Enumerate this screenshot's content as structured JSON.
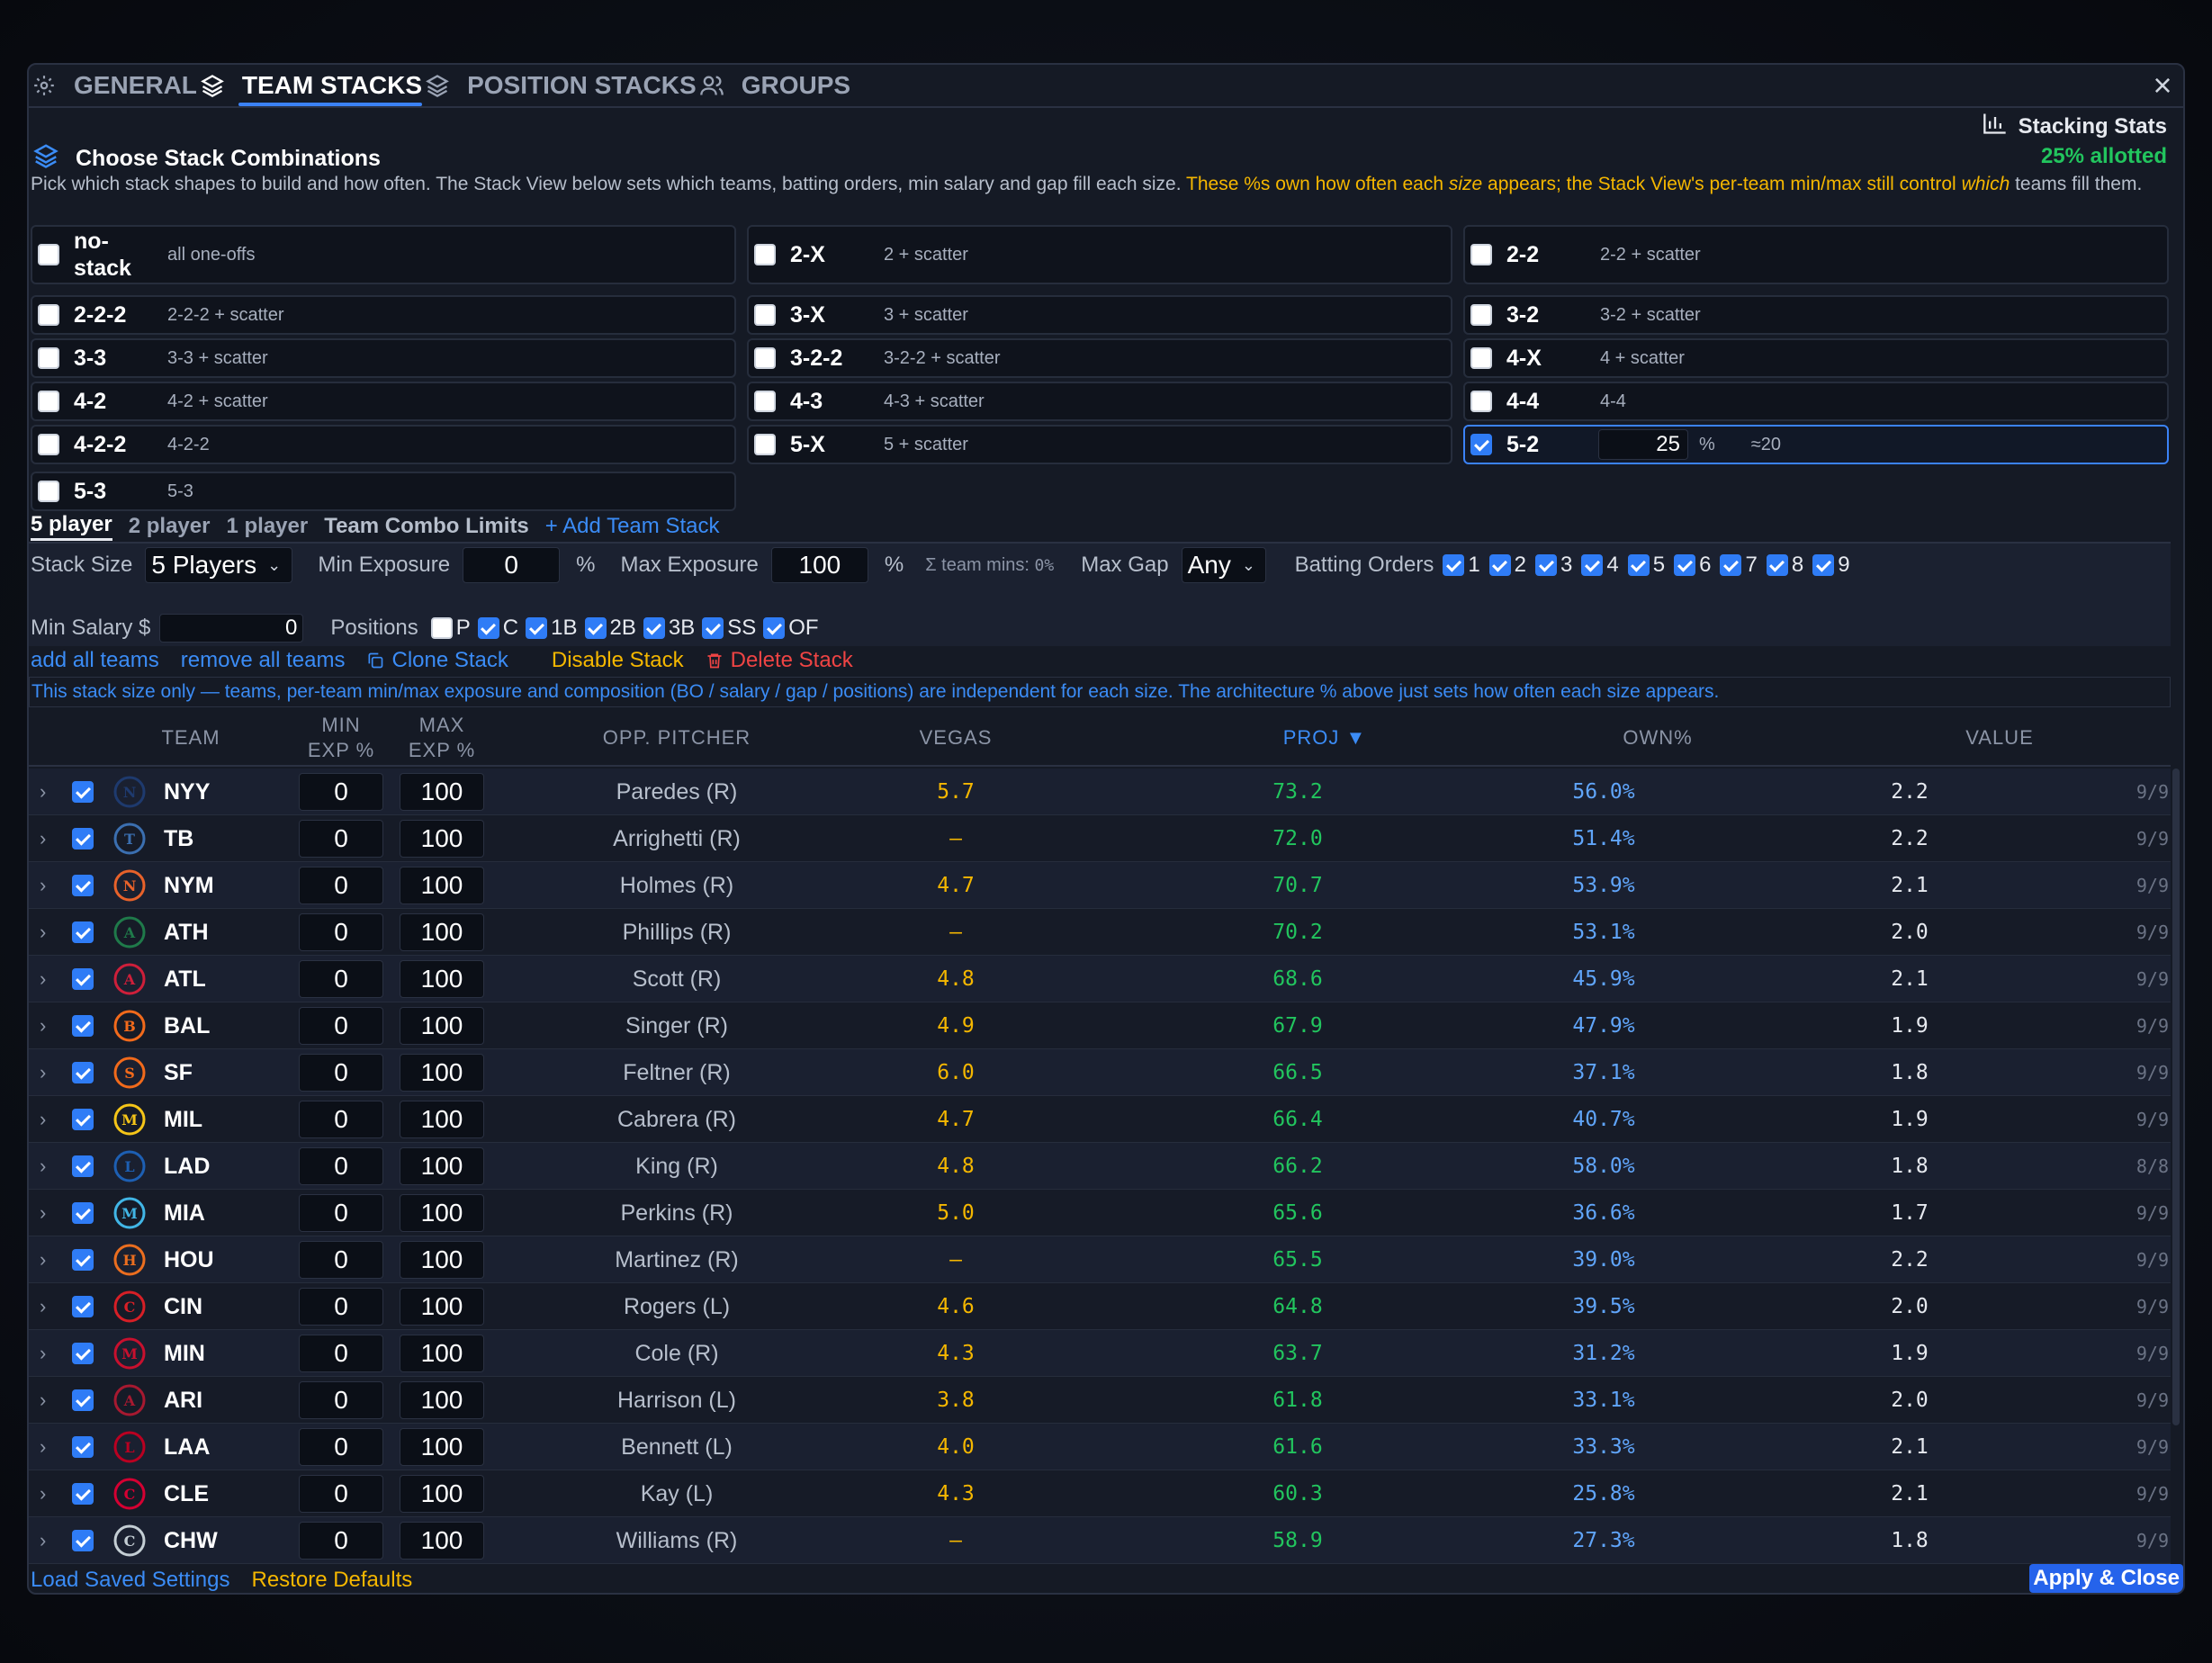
{
  "tabs": [
    {
      "label": "GENERAL",
      "icon": "gear-icon"
    },
    {
      "label": "TEAM STACKS",
      "icon": "layers-icon"
    },
    {
      "label": "POSITION STACKS",
      "icon": "layers-icon"
    },
    {
      "label": "GROUPS",
      "icon": "users-icon"
    }
  ],
  "stacking_stats_label": "Stacking Stats",
  "allotted": "25% allotted",
  "section_title": "Choose Stack Combinations",
  "description": {
    "part1": "Pick which stack shapes to build and how often. The Stack View below sets which teams, batting orders, min salary and gap fill each size. ",
    "warn1": "These %s own how often each ",
    "warn_em": "size",
    "warn2": " appears; the Stack View's per-team min/max still control ",
    "warn_em2": "which",
    "warn3": " teams fill them."
  },
  "combos": [
    {
      "label": "no-\nstack",
      "sub": "all one-offs",
      "checked": false
    },
    {
      "label": "2-X",
      "sub": "2 + scatter",
      "checked": false
    },
    {
      "label": "2-2",
      "sub": "2-2 + scatter",
      "checked": false
    },
    {
      "label": "2-2-2",
      "sub": "2-2-2 + scatter",
      "checked": false
    },
    {
      "label": "3-X",
      "sub": "3 + scatter",
      "checked": false
    },
    {
      "label": "3-2",
      "sub": "3-2 + scatter",
      "checked": false
    },
    {
      "label": "3-3",
      "sub": "3-3 + scatter",
      "checked": false
    },
    {
      "label": "3-2-2",
      "sub": "3-2-2 + scatter",
      "checked": false
    },
    {
      "label": "4-X",
      "sub": "4 + scatter",
      "checked": false
    },
    {
      "label": "4-2",
      "sub": "4-2 + scatter",
      "checked": false
    },
    {
      "label": "4-3",
      "sub": "4-3 + scatter",
      "checked": false
    },
    {
      "label": "4-4",
      "sub": "4-4",
      "checked": false
    },
    {
      "label": "4-2-2",
      "sub": "4-2-2",
      "checked": false
    },
    {
      "label": "5-X",
      "sub": "5 + scatter",
      "checked": false
    },
    {
      "label": "5-2",
      "sub": "",
      "checked": true,
      "pct": "25",
      "pct_sign": "%",
      "approx": "≈20"
    },
    {
      "label": "5-3",
      "sub": "5-3",
      "checked": false
    }
  ],
  "size_tabs": {
    "items": [
      "5 player",
      "2 player",
      "1 player"
    ],
    "limits": "Team Combo Limits",
    "add": "+ Add Team Stack"
  },
  "settings": {
    "stack_size_label": "Stack Size",
    "stack_size_value": "5 Players",
    "min_exposure_label": "Min Exposure",
    "min_exposure_value": "0",
    "max_exposure_label": "Max Exposure",
    "max_exposure_value": "100",
    "pct": "%",
    "team_mins_label": "Σ team mins:",
    "team_mins_value": "0%",
    "max_gap_label": "Max Gap",
    "max_gap_value": "Any",
    "batting_orders_label": "Batting Orders",
    "batting_orders": [
      "1",
      "2",
      "3",
      "4",
      "5",
      "6",
      "7",
      "8",
      "9"
    ],
    "min_salary_label": "Min Salary $",
    "min_salary_value": "0",
    "positions_label": "Positions",
    "positions": [
      {
        "label": "P",
        "checked": false
      },
      {
        "label": "C",
        "checked": true
      },
      {
        "label": "1B",
        "checked": true
      },
      {
        "label": "2B",
        "checked": true
      },
      {
        "label": "3B",
        "checked": true
      },
      {
        "label": "SS",
        "checked": true
      },
      {
        "label": "OF",
        "checked": true
      }
    ]
  },
  "actions": {
    "add_all": "add all teams",
    "remove_all": "remove all teams",
    "clone": "Clone Stack",
    "disable": "Disable Stack",
    "delete": "Delete Stack"
  },
  "note": "This stack size only — teams, per-team min/max exposure and composition (BO / salary / gap / positions) are independent for each size. The architecture % above just sets how often each size appears.",
  "table": {
    "headers": {
      "team": "TEAM",
      "min1": "MIN",
      "min2": "EXP %",
      "max1": "MAX",
      "max2": "EXP %",
      "pitcher": "OPP. PITCHER",
      "vegas": "VEGAS",
      "proj": "PROJ ▼",
      "own": "OWN%",
      "value": "VALUE"
    },
    "rows": [
      {
        "team": "NYY",
        "color": "#1e3a6e",
        "min": "0",
        "max": "100",
        "pitcher": "Paredes (R)",
        "vegas": "5.7",
        "proj": "73.2",
        "own": "56.0%",
        "value": "2.2",
        "ratio": "9/9"
      },
      {
        "team": "TB",
        "color": "#3b6fb0",
        "min": "0",
        "max": "100",
        "pitcher": "Arrighetti (R)",
        "vegas": "–",
        "proj": "72.0",
        "own": "51.4%",
        "value": "2.2",
        "ratio": "9/9"
      },
      {
        "team": "NYM",
        "color": "#e8622a",
        "min": "0",
        "max": "100",
        "pitcher": "Holmes (R)",
        "vegas": "4.7",
        "proj": "70.7",
        "own": "53.9%",
        "value": "2.1",
        "ratio": "9/9"
      },
      {
        "team": "ATH",
        "color": "#1f7a4a",
        "min": "0",
        "max": "100",
        "pitcher": "Phillips (R)",
        "vegas": "–",
        "proj": "70.2",
        "own": "53.1%",
        "value": "2.0",
        "ratio": "9/9"
      },
      {
        "team": "ATL",
        "color": "#ce1f3a",
        "min": "0",
        "max": "100",
        "pitcher": "Scott (R)",
        "vegas": "4.8",
        "proj": "68.6",
        "own": "45.9%",
        "value": "2.1",
        "ratio": "9/9"
      },
      {
        "team": "BAL",
        "color": "#f26a1b",
        "min": "0",
        "max": "100",
        "pitcher": "Singer (R)",
        "vegas": "4.9",
        "proj": "67.9",
        "own": "47.9%",
        "value": "1.9",
        "ratio": "9/9"
      },
      {
        "team": "SF",
        "color": "#f26a1b",
        "min": "0",
        "max": "100",
        "pitcher": "Feltner (R)",
        "vegas": "6.0",
        "proj": "66.5",
        "own": "37.1%",
        "value": "1.8",
        "ratio": "9/9"
      },
      {
        "team": "MIL",
        "color": "#f5c518",
        "min": "0",
        "max": "100",
        "pitcher": "Cabrera (R)",
        "vegas": "4.7",
        "proj": "66.4",
        "own": "40.7%",
        "value": "1.9",
        "ratio": "9/9"
      },
      {
        "team": "LAD",
        "color": "#1d5fb3",
        "min": "0",
        "max": "100",
        "pitcher": "King (R)",
        "vegas": "4.8",
        "proj": "66.2",
        "own": "58.0%",
        "value": "1.8",
        "ratio": "8/8"
      },
      {
        "team": "MIA",
        "color": "#41b6e6",
        "min": "0",
        "max": "100",
        "pitcher": "Perkins (R)",
        "vegas": "5.0",
        "proj": "65.6",
        "own": "36.6%",
        "value": "1.7",
        "ratio": "9/9"
      },
      {
        "team": "HOU",
        "color": "#eb6e1f",
        "min": "0",
        "max": "100",
        "pitcher": "Martinez (R)",
        "vegas": "–",
        "proj": "65.5",
        "own": "39.0%",
        "value": "2.2",
        "ratio": "9/9"
      },
      {
        "team": "CIN",
        "color": "#d71f26",
        "min": "0",
        "max": "100",
        "pitcher": "Rogers (L)",
        "vegas": "4.6",
        "proj": "64.8",
        "own": "39.5%",
        "value": "2.0",
        "ratio": "9/9"
      },
      {
        "team": "MIN",
        "color": "#c8102e",
        "min": "0",
        "max": "100",
        "pitcher": "Cole (R)",
        "vegas": "4.3",
        "proj": "63.7",
        "own": "31.2%",
        "value": "1.9",
        "ratio": "9/9"
      },
      {
        "team": "ARI",
        "color": "#a71930",
        "min": "0",
        "max": "100",
        "pitcher": "Harrison (L)",
        "vegas": "3.8",
        "proj": "61.8",
        "own": "33.1%",
        "value": "2.0",
        "ratio": "9/9"
      },
      {
        "team": "LAA",
        "color": "#ba0021",
        "min": "0",
        "max": "100",
        "pitcher": "Bennett (L)",
        "vegas": "4.0",
        "proj": "61.6",
        "own": "33.3%",
        "value": "2.1",
        "ratio": "9/9"
      },
      {
        "team": "CLE",
        "color": "#d50032",
        "min": "0",
        "max": "100",
        "pitcher": "Kay (L)",
        "vegas": "4.3",
        "proj": "60.3",
        "own": "25.8%",
        "value": "2.1",
        "ratio": "9/9"
      },
      {
        "team": "CHW",
        "color": "#c4ced4",
        "min": "0",
        "max": "100",
        "pitcher": "Williams (R)",
        "vegas": "–",
        "proj": "58.9",
        "own": "27.3%",
        "value": "1.8",
        "ratio": "9/9"
      }
    ]
  },
  "footer": {
    "load": "Load Saved Settings",
    "restore": "Restore Defaults",
    "apply": "Apply & Close"
  }
}
